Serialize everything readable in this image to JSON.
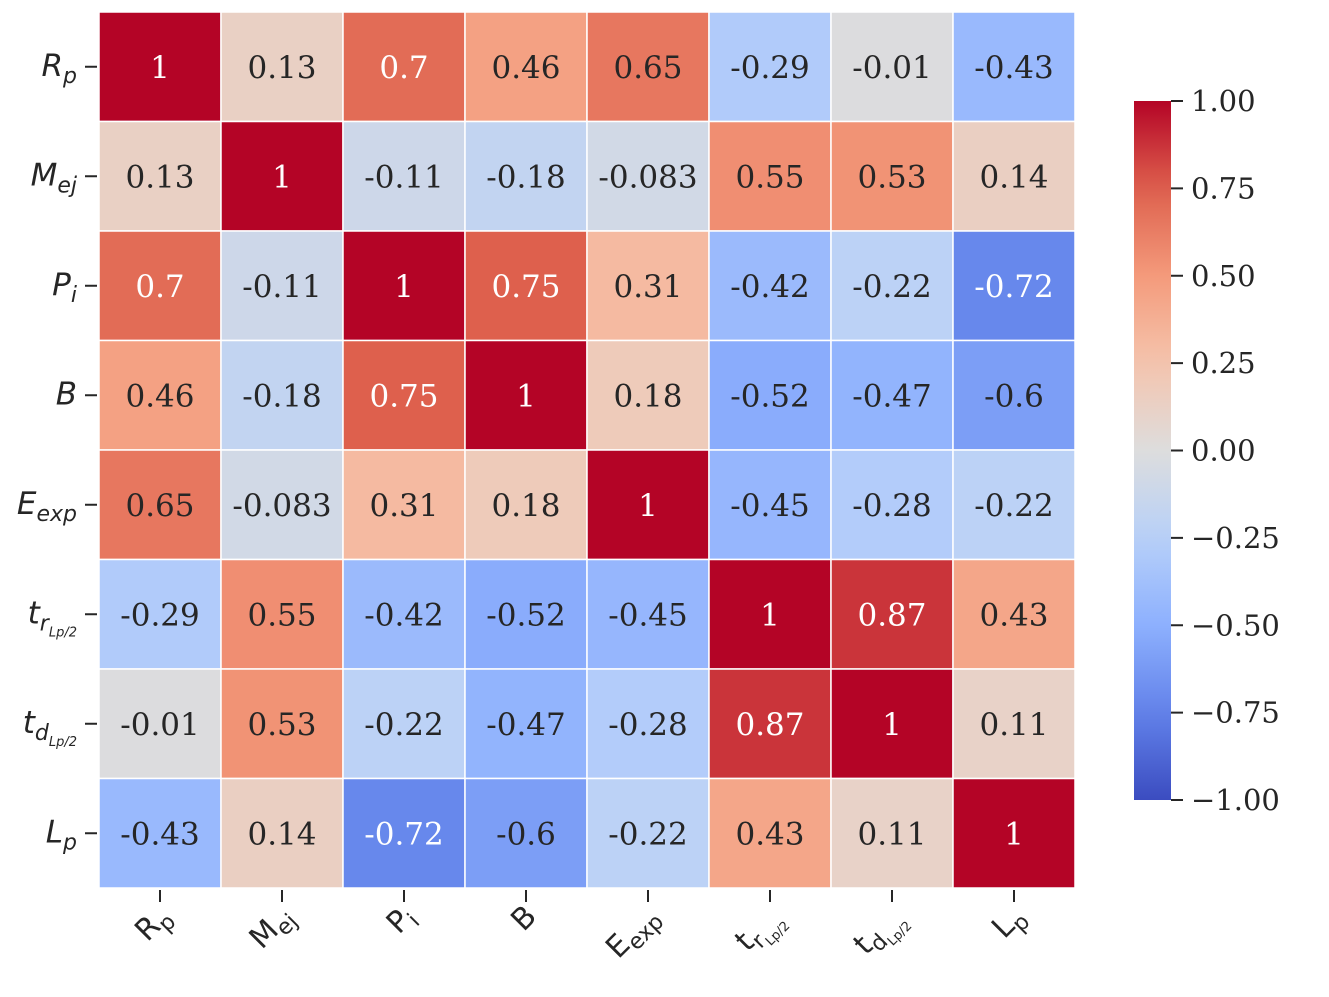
{
  "chart_data": {
    "type": "heatmap",
    "title": "",
    "row_labels": [
      {
        "main": "R",
        "sub": "p",
        "subsub": ""
      },
      {
        "main": "M",
        "sub": "ej",
        "subsub": ""
      },
      {
        "main": "P",
        "sub": "i",
        "subsub": ""
      },
      {
        "main": "B",
        "sub": "",
        "subsub": ""
      },
      {
        "main": "E",
        "sub": "exp",
        "subsub": ""
      },
      {
        "main": "t",
        "sub": "r",
        "subsub": "Lp/2"
      },
      {
        "main": "t",
        "sub": "d",
        "subsub": "Lp/2"
      },
      {
        "main": "L",
        "sub": "p",
        "subsub": ""
      }
    ],
    "col_labels": [
      {
        "main": "R",
        "sub": "p",
        "subsub": ""
      },
      {
        "main": "M",
        "sub": "ej",
        "subsub": ""
      },
      {
        "main": "P",
        "sub": "i",
        "subsub": ""
      },
      {
        "main": "B",
        "sub": "",
        "subsub": ""
      },
      {
        "main": "E",
        "sub": "exp",
        "subsub": ""
      },
      {
        "main": "t",
        "sub": "r",
        "subsub": "Lp/2"
      },
      {
        "main": "t",
        "sub": "d",
        "subsub": "Lp/2"
      },
      {
        "main": "L",
        "sub": "p",
        "subsub": ""
      }
    ],
    "values": [
      [
        1,
        0.13,
        0.7,
        0.46,
        0.65,
        -0.29,
        -0.01,
        -0.43
      ],
      [
        0.13,
        1,
        -0.11,
        -0.18,
        -0.083,
        0.55,
        0.53,
        0.14
      ],
      [
        0.7,
        -0.11,
        1,
        0.75,
        0.31,
        -0.42,
        -0.22,
        -0.72
      ],
      [
        0.46,
        -0.18,
        0.75,
        1,
        0.18,
        -0.52,
        -0.47,
        -0.6
      ],
      [
        0.65,
        -0.083,
        0.31,
        0.18,
        1,
        -0.45,
        -0.28,
        -0.22
      ],
      [
        -0.29,
        0.55,
        -0.42,
        -0.52,
        -0.45,
        1,
        0.87,
        0.43
      ],
      [
        -0.01,
        0.53,
        -0.22,
        -0.47,
        -0.28,
        0.87,
        1,
        0.11
      ],
      [
        -0.43,
        0.14,
        -0.72,
        -0.6,
        -0.22,
        0.43,
        0.11,
        1
      ]
    ],
    "cell_labels": [
      [
        "1",
        "0.13",
        "0.7",
        "0.46",
        "0.65",
        "-0.29",
        "-0.01",
        "-0.43"
      ],
      [
        "0.13",
        "1",
        "-0.11",
        "-0.18",
        "-0.083",
        "0.55",
        "0.53",
        "0.14"
      ],
      [
        "0.7",
        "-0.11",
        "1",
        "0.75",
        "0.31",
        "-0.42",
        "-0.22",
        "-0.72"
      ],
      [
        "0.46",
        "-0.18",
        "0.75",
        "1",
        "0.18",
        "-0.52",
        "-0.47",
        "-0.6"
      ],
      [
        "0.65",
        "-0.083",
        "0.31",
        "0.18",
        "1",
        "-0.45",
        "-0.28",
        "-0.22"
      ],
      [
        "-0.29",
        "0.55",
        "-0.42",
        "-0.52",
        "-0.45",
        "1",
        "0.87",
        "0.43"
      ],
      [
        "-0.01",
        "0.53",
        "-0.22",
        "-0.47",
        "-0.28",
        "0.87",
        "1",
        "0.11"
      ],
      [
        "-0.43",
        "0.14",
        "-0.72",
        "-0.6",
        "-0.22",
        "0.43",
        "0.11",
        "1"
      ]
    ],
    "colormap": "coolwarm",
    "vmin": -1.0,
    "vmax": 1.0,
    "colorbar": {
      "ticks": [
        1.0,
        0.75,
        0.5,
        0.25,
        0.0,
        -0.25,
        -0.5,
        -0.75,
        -1.0
      ],
      "tick_labels": [
        "1.00",
        "0.75",
        "0.50",
        "0.25",
        "0.00",
        "−0.25",
        "−0.50",
        "−0.75",
        "−1.00"
      ]
    },
    "colors": {
      "text_dark": "#262626",
      "text_light": "#ffffff",
      "grid_line": "#ffffff"
    }
  }
}
